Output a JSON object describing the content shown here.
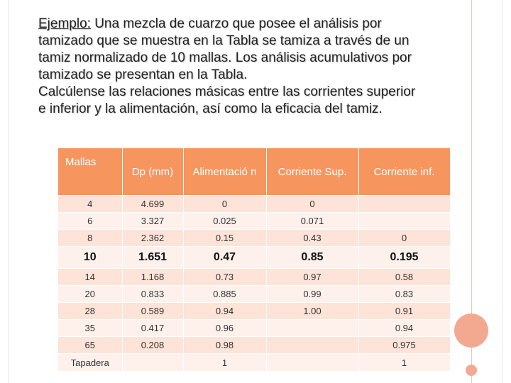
{
  "intro": {
    "lead": "Ejemplo:",
    "line1_rest": " Una mezcla de cuarzo que posee el análisis por",
    "line2": "tamizado que se muestra en la Tabla se tamiza a través de un",
    "line3": "tamiz normalizado de 10 mallas. Los análisis acumulativos por",
    "line4": "tamizado se presentan en la Tabla.",
    "line5": "Calcúlense las relaciones másicas entre las corrientes superior",
    "line6": "e inferior y la alimentación, así como la eficacia del tamiz."
  },
  "table": {
    "headers": [
      "Mallas",
      "Dp (mm)",
      "Alimentació n",
      "Corriente Sup.",
      "Corriente inf."
    ],
    "rows": [
      [
        "4",
        "4.699",
        "0",
        "0",
        ""
      ],
      [
        "6",
        "3.327",
        "0.025",
        "0.071",
        ""
      ],
      [
        "8",
        "2.362",
        "0.15",
        "0.43",
        "0"
      ],
      [
        "10",
        "1.651",
        "0.47",
        "0.85",
        "0.195"
      ],
      [
        "14",
        "1.168",
        "0.73",
        "0.97",
        "0.58"
      ],
      [
        "20",
        "0.833",
        "0.885",
        "0.99",
        "0.83"
      ],
      [
        "28",
        "0.589",
        "0.94",
        "1.00",
        "0.91"
      ],
      [
        "35",
        "0.417",
        "0.96",
        "",
        "0.94"
      ],
      [
        "65",
        "0.208",
        "0.98",
        "",
        "0.975"
      ],
      [
        "Tapadera",
        "",
        "1",
        "",
        "1"
      ]
    ]
  },
  "colors": {
    "header_bg": "#f7955f",
    "row_odd": "#fde3d8",
    "row_even": "#fef1ec",
    "accent_circle": "#f3a98f"
  }
}
